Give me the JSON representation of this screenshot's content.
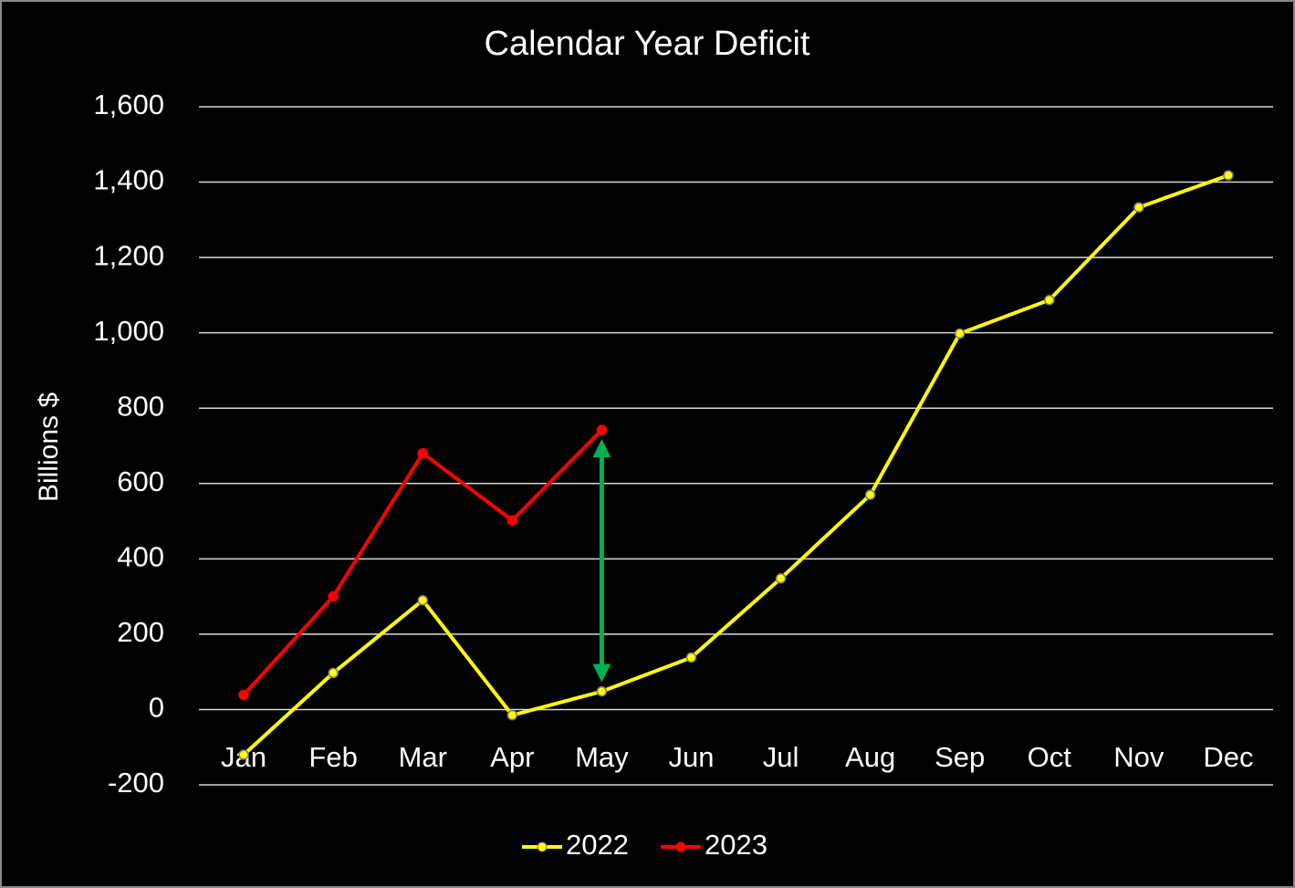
{
  "chart_data": {
    "type": "line",
    "title": "Calendar Year Deficit",
    "y_label": "Billions $",
    "categories": [
      "Jan",
      "Feb",
      "Mar",
      "Apr",
      "May",
      "Jun",
      "Jul",
      "Aug",
      "Sep",
      "Oct",
      "Nov",
      "Dec"
    ],
    "series": [
      {
        "name": "2022",
        "color": "#ffff00",
        "values": [
          -120,
          97,
          290,
          -15,
          48,
          138,
          348,
          570,
          998,
          1087,
          1333,
          1418
        ]
      },
      {
        "name": "2023",
        "color": "#ff0000",
        "values": [
          39,
          300,
          680,
          502,
          742,
          null,
          null,
          null,
          null,
          null,
          null,
          null
        ]
      }
    ],
    "ylim": [
      -200,
      1600
    ],
    "yticks": [
      -200,
      0,
      200,
      400,
      600,
      800,
      {
        "value": 1000,
        "label": "1,000"
      },
      {
        "value": 1200,
        "label": "1,200"
      },
      {
        "value": 1400,
        "label": "1,400"
      },
      {
        "value": 1600,
        "label": "1,600"
      }
    ],
    "grid": true,
    "legend": "bottom"
  }
}
